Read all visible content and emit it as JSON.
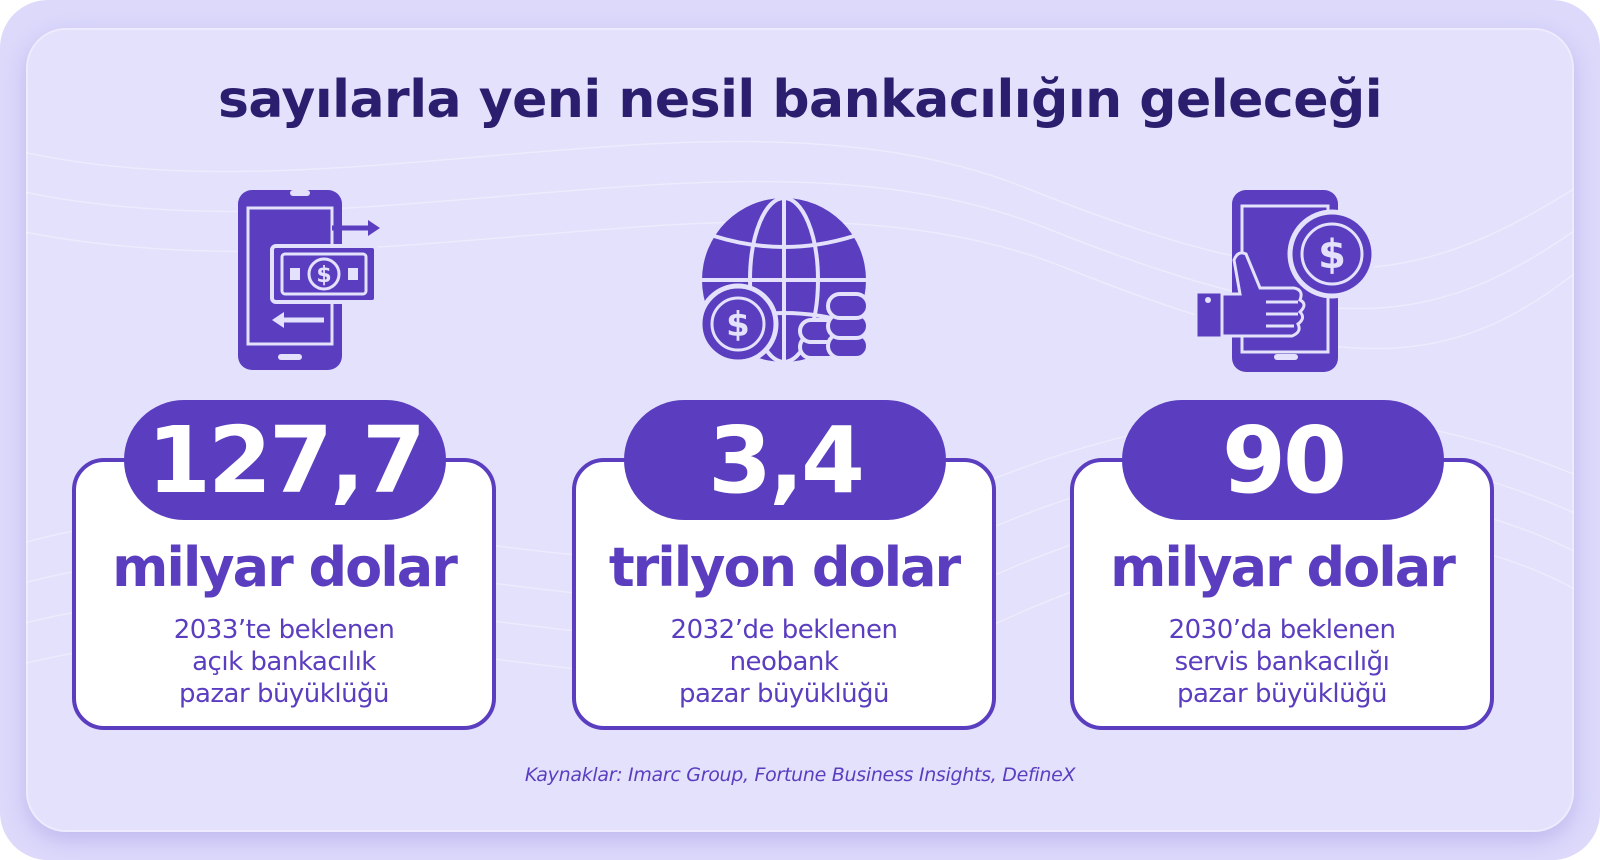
{
  "title": "sayılarla yeni nesil bankacılığın geleceği",
  "colors": {
    "primary": "#5b3ec0",
    "title": "#2b1e6e",
    "background": "#e3e1fc",
    "card": "#ffffff"
  },
  "stats": [
    {
      "icon": "mobile-money-transfer-icon",
      "value": "127,7",
      "unit": "milyar dolar",
      "desc_line1": "2033’te beklenen",
      "desc_line2": "açık bankacılık",
      "desc_line3": "pazar büyüklüğü"
    },
    {
      "icon": "globe-coins-icon",
      "value": "3,4",
      "unit": "trilyon dolar",
      "desc_line1": "2032’de beklenen",
      "desc_line2": "neobank",
      "desc_line3": "pazar büyüklüğü"
    },
    {
      "icon": "phone-thumbs-up-dollar-icon",
      "value": "90",
      "unit": "milyar dolar",
      "desc_line1": "2030’da beklenen",
      "desc_line2": "servis bankacılığı",
      "desc_line3": "pazar büyüklüğü"
    }
  ],
  "source": "Kaynaklar: Imarc Group, Fortune Business Insights, DefineX"
}
